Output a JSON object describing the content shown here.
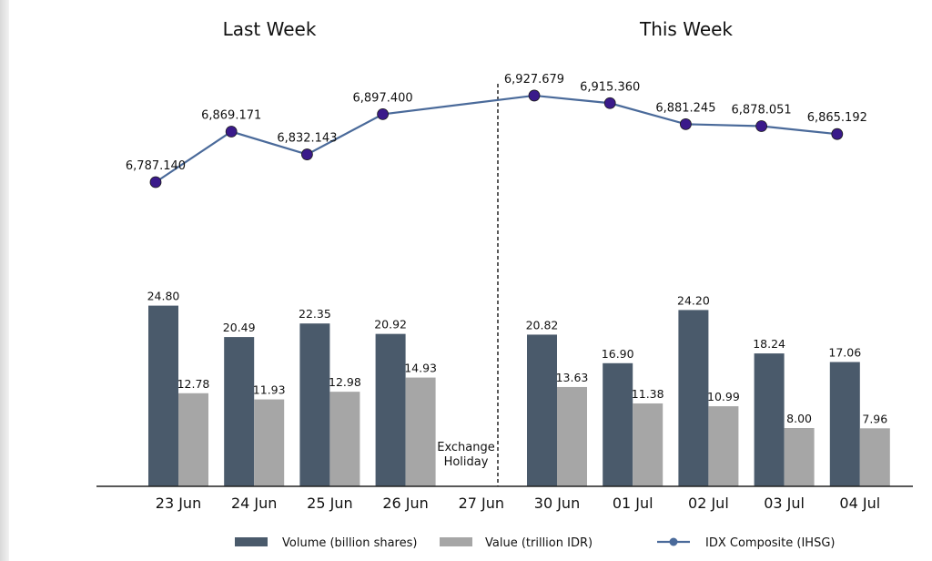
{
  "chart_data": {
    "type": "bar",
    "section_titles": [
      "Last Week",
      "This Week"
    ],
    "categories": [
      "23 Jun",
      "24 Jun",
      "25 Jun",
      "26 Jun",
      "27 Jun",
      "30 Jun",
      "01 Jul",
      "02 Jul",
      "03 Jul",
      "04 Jul"
    ],
    "series": [
      {
        "name": "Volume (billion shares)",
        "type": "bar",
        "color": "#4a5a6b",
        "values": [
          24.8,
          20.49,
          22.35,
          20.92,
          null,
          20.82,
          16.9,
          24.2,
          18.24,
          17.06
        ],
        "labels": [
          "24.80",
          "20.49",
          "22.35",
          "20.92",
          null,
          "20.82",
          "16.90",
          "24.20",
          "18.24",
          "17.06"
        ]
      },
      {
        "name": "Value (trillion IDR)",
        "type": "bar",
        "color": "#a6a6a6",
        "values": [
          12.78,
          11.93,
          12.98,
          14.93,
          null,
          13.63,
          11.38,
          10.99,
          8.0,
          7.96
        ],
        "labels": [
          "12.78",
          "11.93",
          "12.98",
          "14.93",
          null,
          "13.63",
          "11.38",
          "10.99",
          "8.00",
          "7.96"
        ]
      },
      {
        "name": "IDX Composite (IHSG)",
        "type": "line",
        "color": "#4a6a9a",
        "marker_color": "#3a1a8a",
        "values": [
          6787.14,
          6869.171,
          6832.143,
          6897.4,
          null,
          6927.679,
          6915.36,
          6881.245,
          6878.051,
          6865.192
        ],
        "labels": [
          "6,787.140",
          "6,869.171",
          "6,832.143",
          "6,897.400",
          null,
          "6,927.679",
          "6,915.360",
          "6,881.245",
          "6,878.051",
          "6,865.192"
        ]
      }
    ],
    "annotations": [
      "Exchange",
      "Holiday"
    ],
    "legend_position": "bottom",
    "grid": false
  }
}
